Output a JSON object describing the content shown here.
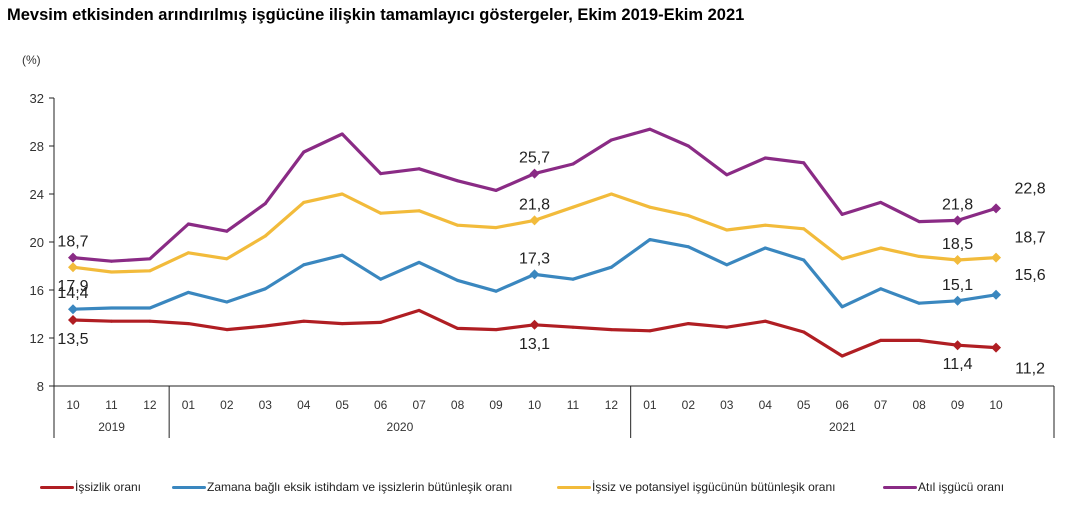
{
  "chart_data": {
    "type": "line",
    "title": "Mevsim etkisinden arındırılmış işgücüne ilişkin tamamlayıcı göstergeler, Ekim 2019-Ekim 2021",
    "ylabel": "(%)",
    "xlabel": "",
    "ylim": [
      8,
      32
    ],
    "yticks": [
      "8",
      "12",
      "16",
      "20",
      "24",
      "28",
      "32"
    ],
    "ytick_values": [
      8,
      12,
      16,
      20,
      24,
      28,
      32
    ],
    "grid": false,
    "legend_position": "bottom",
    "categories": [
      "10",
      "11",
      "12",
      "01",
      "02",
      "03",
      "04",
      "05",
      "06",
      "07",
      "08",
      "09",
      "10",
      "11",
      "12",
      "01",
      "02",
      "03",
      "04",
      "05",
      "06",
      "07",
      "08",
      "09",
      "10"
    ],
    "year_groups": [
      {
        "label": "2019",
        "start": 0,
        "end": 2
      },
      {
        "label": "2020",
        "start": 3,
        "end": 14
      },
      {
        "label": "2021",
        "start": 15,
        "end": 24
      }
    ],
    "series": [
      {
        "name": "İşsizlik oranı",
        "color": "#b01e23",
        "values": [
          13.5,
          13.4,
          13.4,
          13.2,
          12.7,
          13.0,
          13.4,
          13.2,
          13.3,
          14.3,
          12.8,
          12.7,
          13.1,
          12.9,
          12.7,
          12.6,
          13.2,
          12.9,
          13.4,
          12.5,
          10.5,
          11.8,
          11.8,
          11.4,
          11.2
        ],
        "labels": [
          {
            "index": 0,
            "text": "13,5",
            "pos": "below"
          },
          {
            "index": 12,
            "text": "13,1",
            "pos": "below"
          },
          {
            "index": 23,
            "text": "11,4",
            "pos": "below"
          },
          {
            "index": 24,
            "text": "11,2",
            "pos": "below-right"
          }
        ]
      },
      {
        "name": "Zamana bağlı eksik istihdam ve işsizlerin bütünleşik oranı",
        "color": "#3a87bf",
        "values": [
          14.4,
          14.5,
          14.5,
          15.8,
          15.0,
          16.1,
          18.1,
          18.9,
          16.9,
          18.3,
          16.8,
          15.9,
          17.3,
          16.9,
          17.9,
          20.2,
          19.6,
          18.1,
          19.5,
          18.5,
          14.6,
          16.1,
          14.9,
          15.1,
          15.6
        ],
        "labels": [
          {
            "index": 0,
            "text": "14,4",
            "pos": "above"
          },
          {
            "index": 12,
            "text": "17,3",
            "pos": "above"
          },
          {
            "index": 23,
            "text": "15,1",
            "pos": "above"
          },
          {
            "index": 24,
            "text": "15,6",
            "pos": "above-right"
          }
        ]
      },
      {
        "name": "İşsiz ve potansiyel işgücünün bütünleşik oranı",
        "color": "#f2bb3b",
        "values": [
          17.9,
          17.5,
          17.6,
          19.1,
          18.6,
          20.5,
          23.3,
          24.0,
          22.4,
          22.6,
          21.4,
          21.2,
          21.8,
          22.9,
          24.0,
          22.9,
          22.2,
          21.0,
          21.4,
          21.1,
          18.6,
          19.5,
          18.8,
          18.5,
          18.7
        ],
        "labels": [
          {
            "index": 0,
            "text": "17,9",
            "pos": "below"
          },
          {
            "index": 12,
            "text": "21,8",
            "pos": "above"
          },
          {
            "index": 23,
            "text": "18,5",
            "pos": "above"
          },
          {
            "index": 24,
            "text": "18,7",
            "pos": "above-right"
          }
        ]
      },
      {
        "name": "Atıl işgücü oranı",
        "color": "#8a2b85",
        "values": [
          18.7,
          18.4,
          18.6,
          21.5,
          20.9,
          23.2,
          27.5,
          29.0,
          25.7,
          26.1,
          25.1,
          24.3,
          25.7,
          26.5,
          28.5,
          29.4,
          28.0,
          25.6,
          27.0,
          26.6,
          22.3,
          23.3,
          21.7,
          21.8,
          22.8
        ],
        "labels": [
          {
            "index": 0,
            "text": "18,7",
            "pos": "above"
          },
          {
            "index": 12,
            "text": "25,7",
            "pos": "above"
          },
          {
            "index": 23,
            "text": "21,8",
            "pos": "above"
          },
          {
            "index": 24,
            "text": "22,8",
            "pos": "above-right"
          }
        ]
      }
    ]
  }
}
